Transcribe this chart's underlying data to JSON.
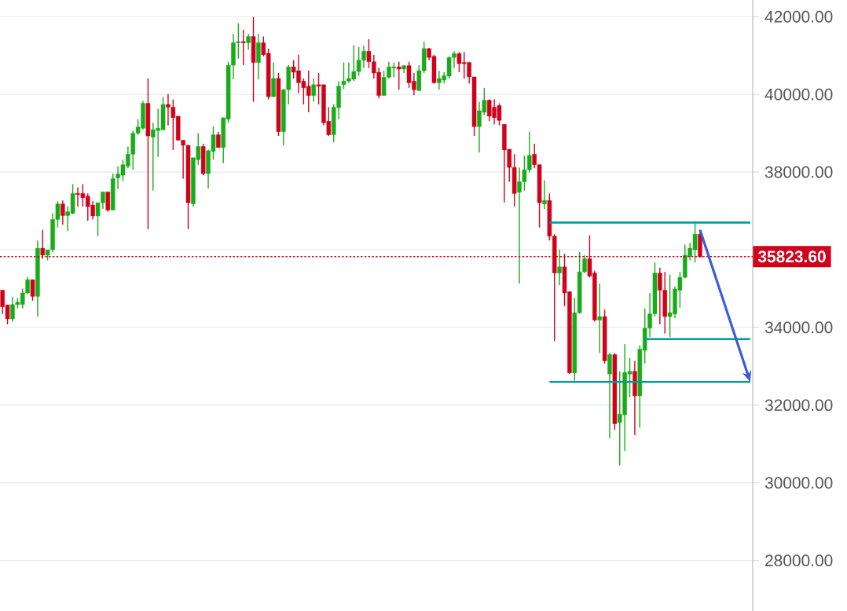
{
  "chart_data": {
    "type": "candlestick",
    "categories": [
      null,
      null,
      null,
      null,
      null,
      null,
      null,
      null,
      null,
      null,
      null,
      null,
      null,
      null,
      null,
      null,
      null,
      null,
      null,
      null,
      null,
      null,
      null,
      null,
      null,
      null,
      null,
      null,
      null,
      null,
      null,
      null,
      null,
      null,
      null,
      null,
      null,
      null,
      null,
      null,
      null,
      null,
      null,
      null,
      null,
      null,
      null,
      null,
      null,
      null,
      null,
      null,
      null,
      null,
      null,
      null,
      null,
      null,
      null,
      null,
      null,
      null,
      null,
      null,
      null,
      null,
      null,
      null,
      null,
      null,
      null,
      null,
      null,
      null,
      null,
      null,
      null,
      null,
      null,
      null,
      null,
      null,
      null,
      null,
      null,
      null,
      null,
      null,
      null,
      null,
      null,
      null,
      null,
      null,
      null,
      null,
      null,
      null,
      null,
      null,
      null,
      null,
      null,
      null,
      null,
      null,
      null,
      null,
      null,
      null,
      null,
      null,
      null,
      null,
      null,
      null,
      null,
      null,
      null,
      null,
      null,
      null,
      null,
      null,
      null,
      null,
      null,
      null,
      null,
      null,
      null,
      null,
      null,
      null,
      null,
      null,
      null,
      null,
      null,
      null,
      null,
      null,
      null,
      null,
      null,
      null,
      null,
      null,
      null,
      null
    ],
    "ohlc": [
      [
        34960,
        34960,
        34350,
        34530
      ],
      [
        34580,
        34580,
        34080,
        34220
      ],
      [
        34220,
        34780,
        34150,
        34590
      ],
      [
        34590,
        34760,
        34490,
        34650
      ],
      [
        34590,
        35000,
        34490,
        34890
      ],
      [
        34890,
        35300,
        34860,
        35230
      ],
      [
        35230,
        35230,
        34690,
        34800
      ],
      [
        34800,
        36240,
        34280,
        36040
      ],
      [
        36040,
        36510,
        35770,
        35860
      ],
      [
        35860,
        36000,
        35730,
        36000
      ],
      [
        36000,
        36940,
        35940,
        36780
      ],
      [
        36780,
        37250,
        36570,
        37180
      ],
      [
        37180,
        37270,
        36640,
        36880
      ],
      [
        36880,
        37110,
        36480,
        36980
      ],
      [
        36940,
        37690,
        36910,
        37450
      ],
      [
        37450,
        37610,
        37110,
        37420
      ],
      [
        37450,
        37690,
        37110,
        37340
      ],
      [
        37380,
        37450,
        36750,
        37110
      ],
      [
        37150,
        37250,
        36780,
        36870
      ],
      [
        36870,
        37210,
        36350,
        37210
      ],
      [
        37210,
        37490,
        37050,
        37490
      ],
      [
        37490,
        37490,
        36980,
        37020
      ],
      [
        37020,
        37960,
        37020,
        37830
      ],
      [
        37850,
        38150,
        37560,
        37950
      ],
      [
        37920,
        38320,
        37770,
        38190
      ],
      [
        38150,
        38660,
        38100,
        38460
      ],
      [
        38460,
        39070,
        38060,
        39000
      ],
      [
        39000,
        39360,
        38960,
        39160
      ],
      [
        39130,
        39830,
        39090,
        39770
      ],
      [
        39770,
        40410,
        36530,
        38930
      ],
      [
        38900,
        39270,
        37520,
        39090
      ],
      [
        39070,
        39630,
        38390,
        39130
      ],
      [
        39090,
        39930,
        39070,
        39740
      ],
      [
        39740,
        40010,
        39200,
        39670
      ],
      [
        39670,
        39870,
        38570,
        39400
      ],
      [
        39440,
        39440,
        38820,
        38820
      ],
      [
        38820,
        38820,
        37830,
        38690
      ],
      [
        38690,
        38690,
        36530,
        37210
      ],
      [
        37180,
        38370,
        37110,
        38370
      ],
      [
        38320,
        39000,
        38190,
        38660
      ],
      [
        38660,
        38730,
        37920,
        37960
      ],
      [
        37960,
        38580,
        37580,
        38550
      ],
      [
        38530,
        39170,
        38320,
        38960
      ],
      [
        38960,
        39040,
        38630,
        38630
      ],
      [
        38630,
        39400,
        38230,
        39400
      ],
      [
        39360,
        40840,
        39270,
        40750
      ],
      [
        40750,
        41560,
        40390,
        41330
      ],
      [
        41330,
        41830,
        40920,
        41360
      ],
      [
        41360,
        41660,
        40750,
        41330
      ],
      [
        41330,
        41560,
        41150,
        41490
      ],
      [
        41490,
        41990,
        39810,
        40820
      ],
      [
        40820,
        41560,
        40390,
        41330
      ],
      [
        41330,
        41490,
        40980,
        41020
      ],
      [
        41060,
        41180,
        39870,
        39940
      ],
      [
        39940,
        40820,
        39940,
        40410
      ],
      [
        40410,
        40550,
        38930,
        39040
      ],
      [
        39040,
        40140,
        38690,
        40120
      ],
      [
        40120,
        40750,
        39740,
        40710
      ],
      [
        40710,
        40880,
        40410,
        40570
      ],
      [
        40610,
        41020,
        40030,
        40300
      ],
      [
        40340,
        40410,
        39740,
        40170
      ],
      [
        40210,
        40610,
        39540,
        39970
      ],
      [
        39970,
        40410,
        39810,
        40250
      ],
      [
        40250,
        40550,
        39740,
        40210
      ],
      [
        40250,
        40250,
        39200,
        39270
      ],
      [
        39310,
        39670,
        38930,
        38960
      ],
      [
        38960,
        39740,
        38770,
        39670
      ],
      [
        39660,
        40340,
        39360,
        40210
      ],
      [
        40250,
        40820,
        40140,
        40340
      ],
      [
        40340,
        40820,
        40300,
        40410
      ],
      [
        40390,
        41260,
        40340,
        40590
      ],
      [
        40590,
        41220,
        40480,
        40880
      ],
      [
        40880,
        41250,
        40680,
        41110
      ],
      [
        41110,
        41420,
        40680,
        40840
      ],
      [
        40840,
        41020,
        40410,
        40550
      ],
      [
        40570,
        40680,
        39900,
        39970
      ],
      [
        39970,
        40610,
        39970,
        40440
      ],
      [
        40440,
        40840,
        40410,
        40710
      ],
      [
        40680,
        40820,
        40440,
        40710
      ],
      [
        40710,
        40840,
        40120,
        40650
      ],
      [
        40650,
        40750,
        40550,
        40740
      ],
      [
        40740,
        40840,
        40170,
        40300
      ],
      [
        40340,
        40550,
        39980,
        40120
      ],
      [
        40100,
        40750,
        40080,
        40610
      ],
      [
        40610,
        41360,
        40550,
        41180
      ],
      [
        41180,
        41190,
        40880,
        40950
      ],
      [
        40980,
        41020,
        40280,
        40300
      ],
      [
        40300,
        40610,
        40120,
        40410
      ],
      [
        40370,
        40570,
        40280,
        40480
      ],
      [
        40470,
        40980,
        40410,
        40950
      ],
      [
        40950,
        41110,
        40680,
        41050
      ],
      [
        41050,
        41090,
        40570,
        40790
      ],
      [
        40820,
        41090,
        40410,
        40790
      ],
      [
        40820,
        40840,
        40280,
        40450
      ],
      [
        40450,
        40450,
        38930,
        39170
      ],
      [
        39170,
        39810,
        38500,
        39580
      ],
      [
        39540,
        40170,
        39470,
        39850
      ],
      [
        39850,
        39870,
        39310,
        39440
      ],
      [
        39670,
        39870,
        39230,
        39400
      ],
      [
        39710,
        39770,
        39200,
        39330
      ],
      [
        39230,
        39230,
        37220,
        38570
      ],
      [
        38590,
        38590,
        37750,
        38120
      ],
      [
        38120,
        38460,
        37110,
        37450
      ],
      [
        37480,
        38120,
        35130,
        37750
      ],
      [
        37750,
        38420,
        37520,
        38060
      ],
      [
        38060,
        39040,
        37990,
        38430
      ],
      [
        38460,
        38730,
        38100,
        38190
      ],
      [
        38190,
        38190,
        36570,
        37210
      ],
      [
        37180,
        37790,
        37050,
        37270
      ],
      [
        37270,
        37450,
        36240,
        36350
      ],
      [
        36350,
        36400,
        33650,
        35400
      ],
      [
        35400,
        36000,
        35090,
        35560
      ],
      [
        35560,
        35900,
        34550,
        34890
      ],
      [
        34920,
        34920,
        32800,
        32830
      ],
      [
        32830,
        34760,
        32630,
        34380
      ],
      [
        34380,
        35940,
        34350,
        35430
      ],
      [
        35430,
        35860,
        35400,
        35770
      ],
      [
        35770,
        36370,
        35290,
        35320
      ],
      [
        35400,
        35460,
        34150,
        34190
      ],
      [
        34190,
        35130,
        33340,
        34280
      ],
      [
        34280,
        34460,
        33070,
        33140
      ],
      [
        32800,
        33340,
        31150,
        33300
      ],
      [
        33300,
        33340,
        31360,
        31520
      ],
      [
        31550,
        32870,
        30450,
        31770
      ],
      [
        31750,
        33570,
        30820,
        32840
      ],
      [
        32800,
        33210,
        32200,
        32870
      ],
      [
        32870,
        33140,
        31230,
        32240
      ],
      [
        32240,
        33540,
        31420,
        33440
      ],
      [
        33410,
        34490,
        33070,
        33980
      ],
      [
        33980,
        34890,
        33750,
        34350
      ],
      [
        34350,
        35670,
        34280,
        35400
      ],
      [
        35400,
        35540,
        34080,
        34960
      ],
      [
        34960,
        35430,
        33840,
        34280
      ],
      [
        34280,
        35360,
        33750,
        34380
      ],
      [
        34350,
        35050,
        34240,
        34990
      ],
      [
        34960,
        35430,
        34510,
        35290
      ],
      [
        35290,
        36130,
        35270,
        35860
      ],
      [
        35830,
        36170,
        35730,
        36040
      ],
      [
        36000,
        36670,
        35670,
        36400
      ],
      [
        36400,
        36510,
        35800,
        35820
      ],
      null,
      null,
      null,
      null,
      null,
      null,
      null,
      null,
      null,
      null
    ],
    "colors": [
      "#d0021b",
      "#d0021b",
      "#1aab1a",
      "#1aab1a",
      "#1aab1a",
      "#1aab1a",
      "#d0021b",
      "#1aab1a",
      "#d0021b",
      "#1aab1a",
      "#1aab1a",
      "#1aab1a",
      "#d0021b",
      "#1aab1a",
      "#1aab1a",
      "#d0021b",
      "#d0021b",
      "#d0021b",
      "#d0021b",
      "#1aab1a",
      "#1aab1a",
      "#d0021b",
      "#1aab1a",
      "#1aab1a",
      "#1aab1a",
      "#1aab1a",
      "#1aab1a",
      "#1aab1a",
      "#1aab1a",
      "#d0021b",
      "#1aab1a",
      "#1aab1a",
      "#1aab1a",
      "#d0021b",
      "#d0021b",
      "#d0021b",
      "#d0021b",
      "#d0021b",
      "#1aab1a",
      "#1aab1a",
      "#d0021b",
      "#1aab1a",
      "#1aab1a",
      "#d0021b",
      "#1aab1a",
      "#1aab1a",
      "#1aab1a",
      "#1aab1a",
      "#d0021b",
      "#1aab1a",
      "#d0021b",
      "#1aab1a",
      "#d0021b",
      "#d0021b",
      "#1aab1a",
      "#d0021b",
      "#1aab1a",
      "#1aab1a",
      "#d0021b",
      "#d0021b",
      "#d0021b",
      "#d0021b",
      "#1aab1a",
      "#d0021b",
      "#d0021b",
      "#d0021b",
      "#1aab1a",
      "#1aab1a",
      "#1aab1a",
      "#1aab1a",
      "#1aab1a",
      "#1aab1a",
      "#1aab1a",
      "#d0021b",
      "#d0021b",
      "#d0021b",
      "#1aab1a",
      "#1aab1a",
      "#1aab1a",
      "#d0021b",
      "#1aab1a",
      "#d0021b",
      "#d0021b",
      "#1aab1a",
      "#1aab1a",
      "#d0021b",
      "#d0021b",
      "#1aab1a",
      "#1aab1a",
      "#1aab1a",
      "#1aab1a",
      "#d0021b",
      "#d0021b",
      "#d0021b",
      "#d0021b",
      "#1aab1a",
      "#1aab1a",
      "#d0021b",
      "#d0021b",
      "#d0021b",
      "#d0021b",
      "#d0021b",
      "#d0021b",
      "#1aab1a",
      "#1aab1a",
      "#1aab1a",
      "#d0021b",
      "#d0021b",
      "#1aab1a",
      "#d0021b",
      "#d0021b",
      "#1aab1a",
      "#d0021b",
      "#d0021b",
      "#1aab1a",
      "#1aab1a",
      "#1aab1a",
      "#d0021b",
      "#d0021b",
      "#1aab1a",
      "#d0021b",
      "#1aab1a",
      "#d0021b",
      "#1aab1a",
      "#1aab1a",
      "#1aab1a",
      "#d0021b",
      "#1aab1a",
      "#1aab1a",
      "#1aab1a",
      "#1aab1a",
      "#d0021b",
      "#d0021b",
      "#1aab1a",
      "#1aab1a",
      "#1aab1a",
      "#1aab1a",
      "#1aab1a",
      "#1aab1a",
      "#d0021b",
      null,
      null,
      null,
      null,
      null,
      null,
      null,
      null,
      null,
      null
    ],
    "series": [
      {
        "type": "line",
        "color": "#009b9b",
        "values": [
          null,
          null,
          null,
          null,
          null,
          null,
          null,
          null,
          null,
          null,
          null,
          null,
          null,
          null,
          null,
          null,
          null,
          null,
          null,
          null,
          null,
          null,
          null,
          null,
          null,
          null,
          null,
          null,
          null,
          null,
          null,
          null,
          null,
          null,
          null,
          null,
          null,
          null,
          null,
          null,
          null,
          null,
          null,
          null,
          null,
          null,
          null,
          null,
          null,
          null,
          null,
          null,
          null,
          null,
          null,
          null,
          null,
          null,
          null,
          null,
          null,
          null,
          null,
          null,
          null,
          null,
          null,
          null,
          null,
          null,
          null,
          null,
          null,
          null,
          null,
          null,
          null,
          null,
          null,
          null,
          null,
          null,
          null,
          null,
          null,
          null,
          null,
          null,
          null,
          null,
          null,
          null,
          null,
          null,
          null,
          null,
          null,
          null,
          null,
          null,
          null,
          null,
          null,
          null,
          null,
          null,
          null,
          null,
          null,
          36700,
          36700,
          36700,
          36700,
          36700,
          36700,
          36700,
          36700,
          36700,
          36700,
          36700,
          36700,
          36700,
          36700,
          36700,
          36700,
          36700,
          36700,
          36700,
          36700,
          36700,
          36700,
          36700,
          36700,
          36700,
          36700,
          36700,
          36700,
          36700,
          36700,
          36700,
          36700,
          36700,
          36700,
          36700,
          36700,
          36700,
          36700,
          36700,
          36700,
          36700
        ]
      },
      {
        "type": "line",
        "color": "#009b9b",
        "values": [
          null,
          null,
          null,
          null,
          null,
          null,
          null,
          null,
          null,
          null,
          null,
          null,
          null,
          null,
          null,
          null,
          null,
          null,
          null,
          null,
          null,
          null,
          null,
          null,
          null,
          null,
          null,
          null,
          null,
          null,
          null,
          null,
          null,
          null,
          null,
          null,
          null,
          null,
          null,
          null,
          null,
          null,
          null,
          null,
          null,
          null,
          null,
          null,
          null,
          null,
          null,
          null,
          null,
          null,
          null,
          null,
          null,
          null,
          null,
          null,
          null,
          null,
          null,
          null,
          null,
          null,
          null,
          null,
          null,
          null,
          null,
          null,
          null,
          null,
          null,
          null,
          null,
          null,
          null,
          null,
          null,
          null,
          null,
          null,
          null,
          null,
          null,
          null,
          null,
          null,
          null,
          null,
          null,
          null,
          null,
          null,
          null,
          null,
          null,
          null,
          null,
          null,
          null,
          null,
          null,
          null,
          null,
          null,
          null,
          null,
          null,
          null,
          null,
          null,
          null,
          null,
          null,
          null,
          null,
          null,
          null,
          null,
          null,
          null,
          null,
          null,
          null,
          null,
          33700,
          33700,
          33700,
          33700,
          33700,
          33700,
          33700,
          33700,
          33700,
          33700,
          33700,
          33700,
          33700,
          33700,
          33700,
          33700,
          33700,
          33700,
          33700,
          33700,
          33700,
          33700
        ]
      },
      {
        "type": "line",
        "color": "#009b9b",
        "values": [
          null,
          null,
          null,
          null,
          null,
          null,
          null,
          null,
          null,
          null,
          null,
          null,
          null,
          null,
          null,
          null,
          null,
          null,
          null,
          null,
          null,
          null,
          null,
          null,
          null,
          null,
          null,
          null,
          null,
          null,
          null,
          null,
          null,
          null,
          null,
          null,
          null,
          null,
          null,
          null,
          null,
          null,
          null,
          null,
          null,
          null,
          null,
          null,
          null,
          null,
          null,
          null,
          null,
          null,
          null,
          null,
          null,
          null,
          null,
          null,
          null,
          null,
          null,
          null,
          null,
          null,
          null,
          null,
          null,
          null,
          null,
          null,
          null,
          null,
          null,
          null,
          null,
          null,
          null,
          null,
          null,
          null,
          null,
          null,
          null,
          null,
          null,
          null,
          null,
          null,
          null,
          null,
          null,
          null,
          null,
          null,
          null,
          null,
          null,
          null,
          null,
          null,
          null,
          null,
          null,
          null,
          null,
          null,
          null,
          32600,
          32600,
          32600,
          32600,
          32600,
          32600,
          32600,
          32600,
          32600,
          32600,
          32600,
          32600,
          32600,
          32600,
          32600,
          32600,
          32600,
          32600,
          32600,
          32600,
          32600,
          32600,
          32600,
          32600,
          32600,
          32600,
          32600,
          32600,
          32600,
          32600,
          32600,
          32600,
          32600,
          32600,
          32600,
          32600,
          32600,
          32600,
          32600,
          32600,
          32600
        ]
      }
    ],
    "ref_lines": [
      {
        "axis": "y",
        "value": 35823.6,
        "label": "35823.60",
        "color": "#d0021b",
        "line_style": "dotted"
      }
    ],
    "ylim": [
      26700,
      42430
    ],
    "yticks": [
      {
        "value": 28000,
        "label": "28000.00"
      },
      {
        "value": 30000,
        "label": "30000.00"
      },
      {
        "value": 32000,
        "label": "32000.00"
      },
      {
        "value": 34000,
        "label": "34000.00"
      },
      {
        "value": 36000,
        "label": null
      },
      {
        "value": 38000,
        "label": "38000.00"
      },
      {
        "value": 40000,
        "label": "40000.00"
      },
      {
        "value": 42000,
        "label": "42000.00"
      }
    ],
    "tick_labels": "y",
    "grid": "y"
  }
}
